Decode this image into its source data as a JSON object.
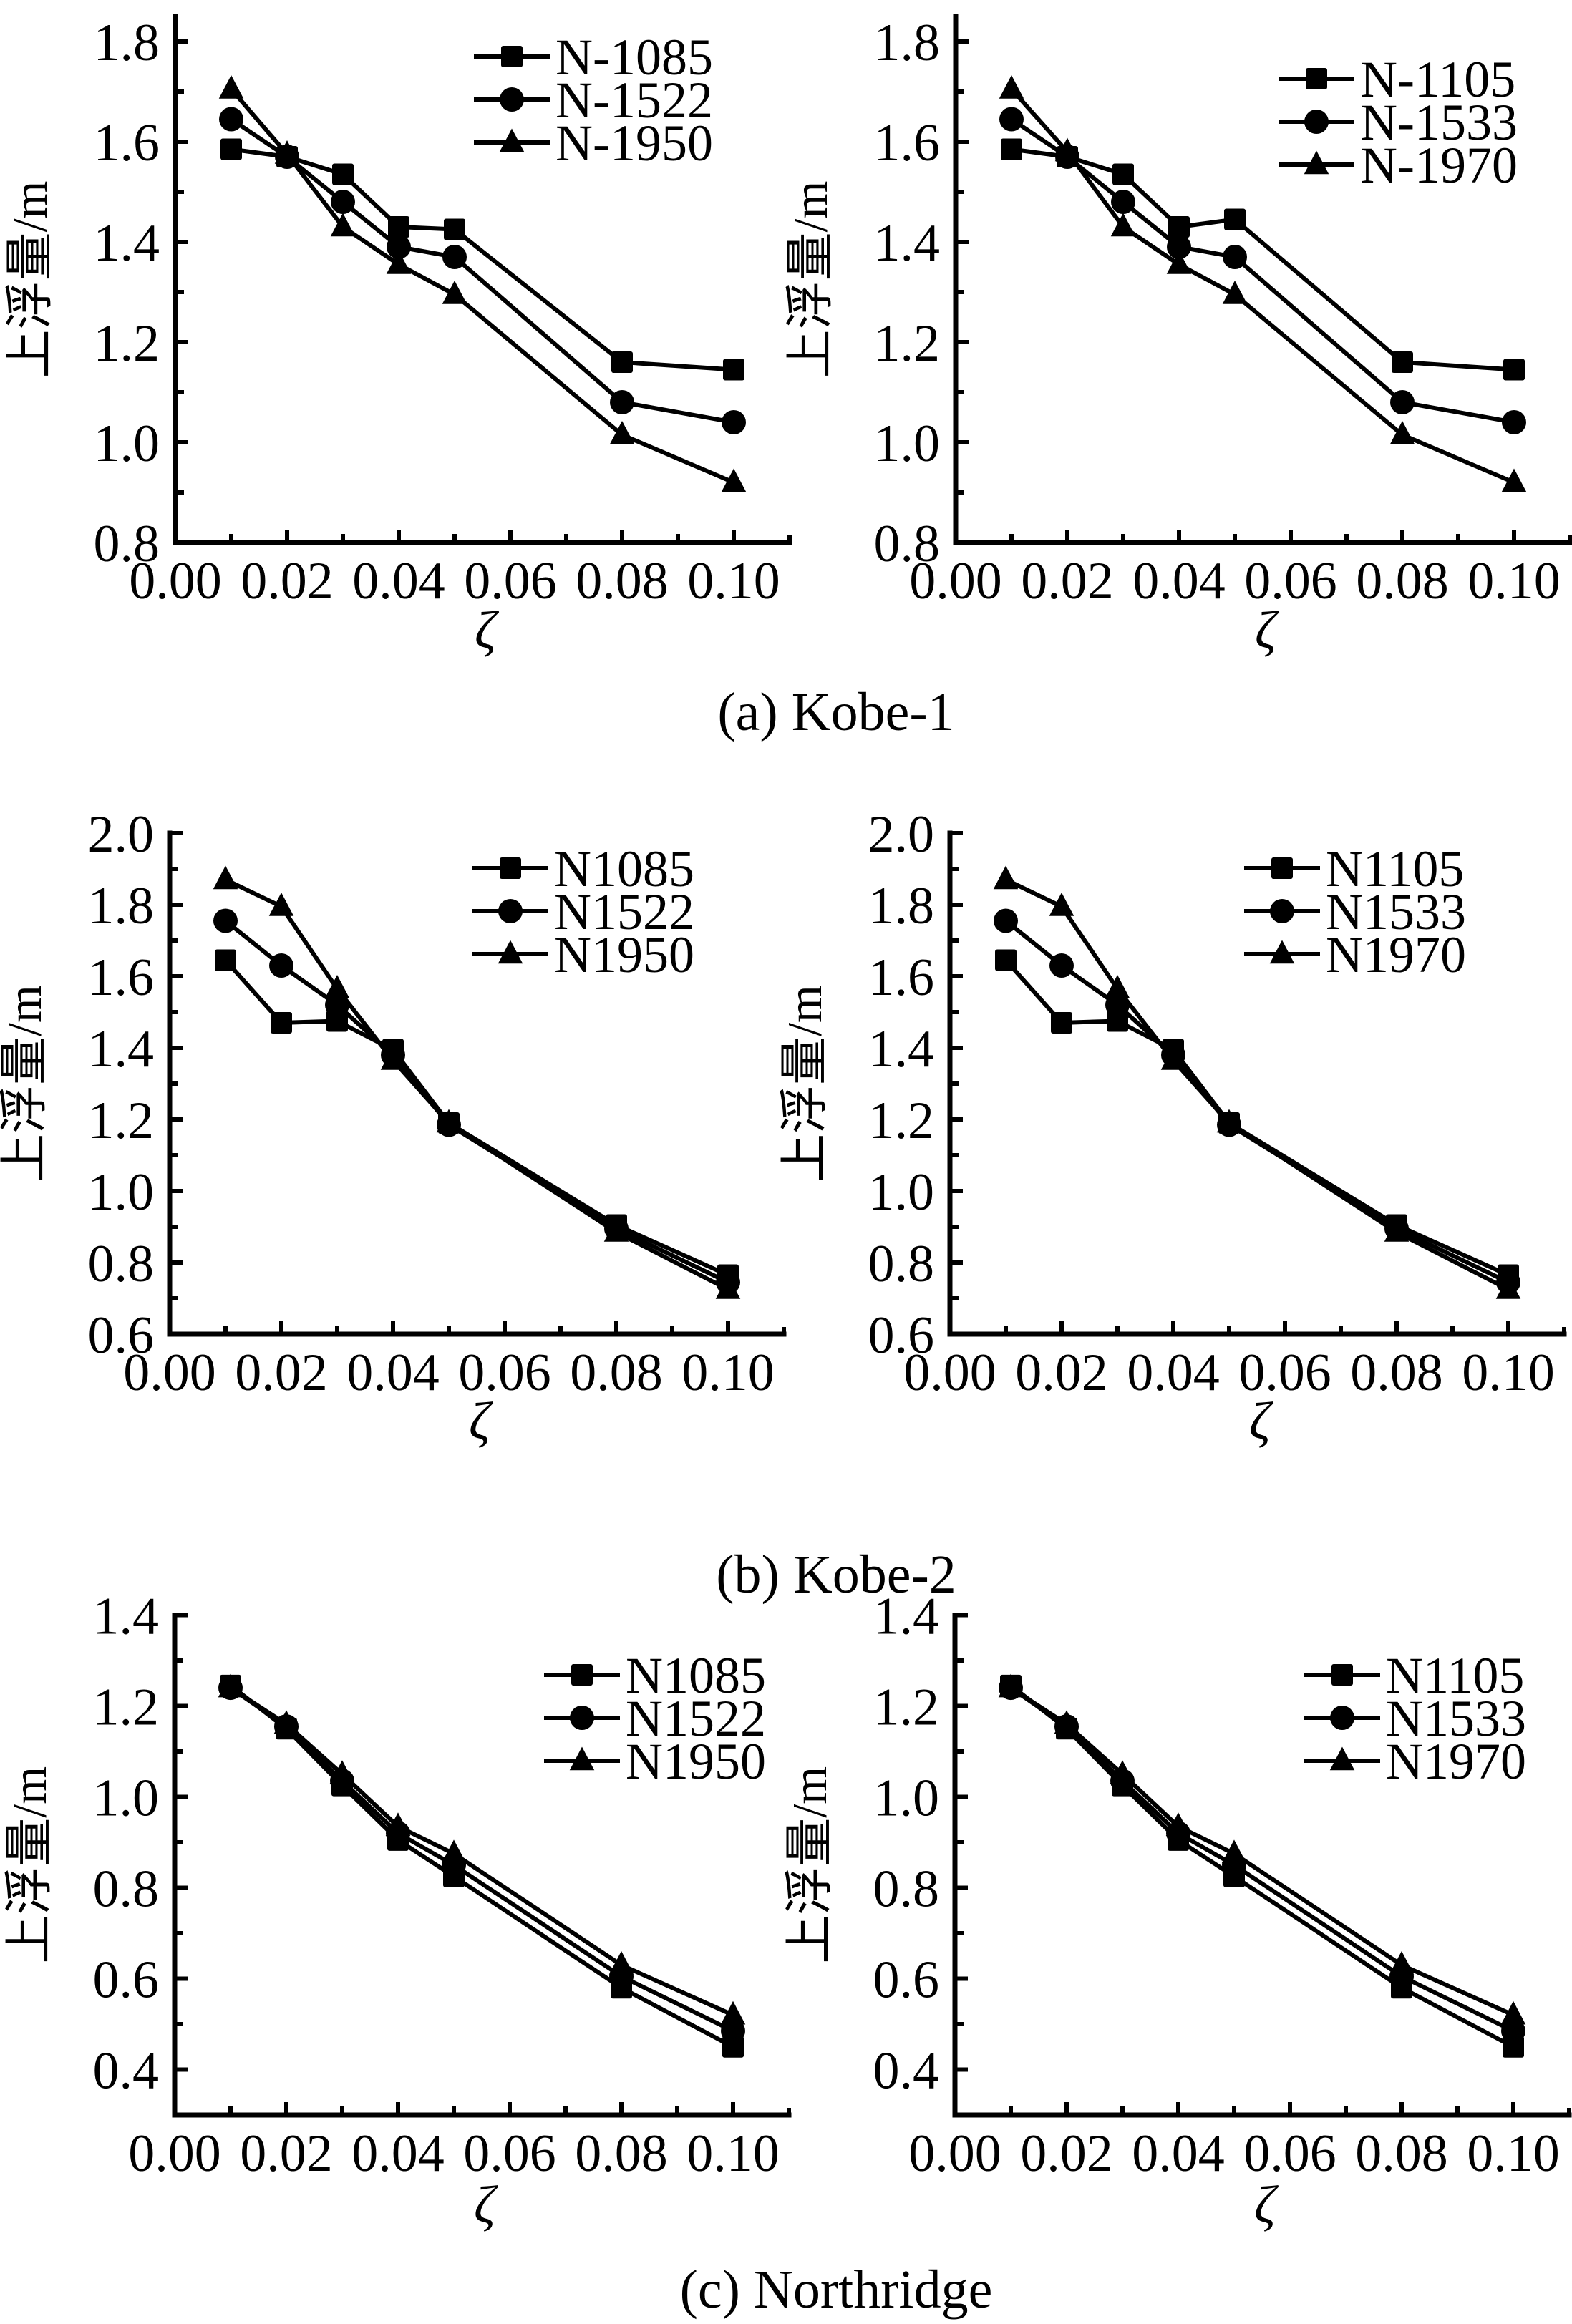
{
  "figure": {
    "captions": [
      "(a) Kobe-1",
      "(b) Kobe-2",
      "(c) Northridge"
    ]
  },
  "chart_data": [
    {
      "type": "line",
      "panel": "Kobe-1 left",
      "group_caption": "(a) Kobe-1",
      "xlabel": "ζ",
      "ylabel": "上浮量/m",
      "xlim": [
        0,
        0.11
      ],
      "ylim": [
        0.8,
        1.85
      ],
      "xticks": [
        0.0,
        0.02,
        0.04,
        0.06,
        0.08,
        0.1
      ],
      "xtick_labels": [
        "0.00",
        "0.02",
        "0.04",
        "0.06",
        "0.08",
        "0.10"
      ],
      "yticks": [
        0.8,
        1.0,
        1.2,
        1.4,
        1.6,
        1.8
      ],
      "ytick_labels": [
        "0.8",
        "1.0",
        "1.2",
        "1.4",
        "1.6",
        "1.8"
      ],
      "grid": false,
      "legend_position": "top-right",
      "x": [
        0.01,
        0.02,
        0.03,
        0.04,
        0.05,
        0.08,
        0.1
      ],
      "series": [
        {
          "name": "N-1085",
          "marker": "square",
          "values": [
            1.585,
            1.57,
            1.535,
            1.43,
            1.425,
            1.16,
            1.145
          ]
        },
        {
          "name": "N-1522",
          "marker": "circle",
          "values": [
            1.645,
            1.57,
            1.48,
            1.39,
            1.37,
            1.08,
            1.04
          ]
        },
        {
          "name": "N-1950",
          "marker": "triangle",
          "values": [
            1.705,
            1.575,
            1.43,
            1.355,
            1.295,
            1.015,
            0.92
          ]
        }
      ]
    },
    {
      "type": "line",
      "panel": "Kobe-1 right",
      "group_caption": "(a) Kobe-1",
      "xlabel": "ζ",
      "ylabel": "上浮量/m",
      "xlim": [
        0,
        0.11
      ],
      "ylim": [
        0.8,
        1.85
      ],
      "xticks": [
        0.0,
        0.02,
        0.04,
        0.06,
        0.08,
        0.1
      ],
      "xtick_labels": [
        "0.00",
        "0.02",
        "0.04",
        "0.06",
        "0.08",
        "0.10"
      ],
      "yticks": [
        0.8,
        1.0,
        1.2,
        1.4,
        1.6,
        1.8
      ],
      "ytick_labels": [
        "0.8",
        "1.0",
        "1.2",
        "1.4",
        "1.6",
        "1.8"
      ],
      "grid": false,
      "legend_position": "top-right",
      "x": [
        0.01,
        0.02,
        0.03,
        0.04,
        0.05,
        0.08,
        0.1
      ],
      "series": [
        {
          "name": "N-1105",
          "marker": "square",
          "values": [
            1.585,
            1.57,
            1.535,
            1.43,
            1.445,
            1.16,
            1.145
          ]
        },
        {
          "name": "N-1533",
          "marker": "circle",
          "values": [
            1.645,
            1.57,
            1.48,
            1.39,
            1.37,
            1.08,
            1.04
          ]
        },
        {
          "name": "N-1970",
          "marker": "triangle",
          "values": [
            1.705,
            1.58,
            1.43,
            1.355,
            1.295,
            1.015,
            0.92
          ]
        }
      ]
    },
    {
      "type": "line",
      "panel": "Kobe-2 left",
      "group_caption": "(b) Kobe-2",
      "xlabel": "ζ",
      "ylabel": "上浮量/m",
      "xlim": [
        0,
        0.11
      ],
      "ylim": [
        0.6,
        2.0
      ],
      "xticks": [
        0.0,
        0.02,
        0.04,
        0.06,
        0.08,
        0.1
      ],
      "xtick_labels": [
        "0.00",
        "0.02",
        "0.04",
        "0.06",
        "0.08",
        "0.10"
      ],
      "yticks": [
        0.6,
        0.8,
        1.0,
        1.2,
        1.4,
        1.6,
        1.8,
        2.0
      ],
      "ytick_labels": [
        "0.6",
        "0.8",
        "1.0",
        "1.2",
        "1.4",
        "1.6",
        "1.8",
        "2.0"
      ],
      "grid": false,
      "legend_position": "top-right",
      "x": [
        0.01,
        0.02,
        0.03,
        0.04,
        0.05,
        0.08,
        0.1
      ],
      "series": [
        {
          "name": "N1085",
          "marker": "square",
          "values": [
            1.645,
            1.47,
            1.475,
            1.395,
            1.19,
            0.905,
            0.765
          ]
        },
        {
          "name": "N1522",
          "marker": "circle",
          "values": [
            1.755,
            1.63,
            1.52,
            1.38,
            1.185,
            0.895,
            0.745
          ]
        },
        {
          "name": "N1950",
          "marker": "triangle",
          "values": [
            1.87,
            1.795,
            1.565,
            1.365,
            1.19,
            0.885,
            0.725
          ]
        }
      ]
    },
    {
      "type": "line",
      "panel": "Kobe-2 right",
      "group_caption": "(b) Kobe-2",
      "xlabel": "ζ",
      "ylabel": "上浮量/m",
      "xlim": [
        0,
        0.11
      ],
      "ylim": [
        0.6,
        2.0
      ],
      "xticks": [
        0.0,
        0.02,
        0.04,
        0.06,
        0.08,
        0.1
      ],
      "xtick_labels": [
        "0.00",
        "0.02",
        "0.04",
        "0.06",
        "0.08",
        "0.10"
      ],
      "yticks": [
        0.6,
        0.8,
        1.0,
        1.2,
        1.4,
        1.6,
        1.8,
        2.0
      ],
      "ytick_labels": [
        "0.6",
        "0.8",
        "1.0",
        "1.2",
        "1.4",
        "1.6",
        "1.8",
        "2.0"
      ],
      "grid": false,
      "legend_position": "top-right",
      "x": [
        0.01,
        0.02,
        0.03,
        0.04,
        0.05,
        0.08,
        0.1
      ],
      "series": [
        {
          "name": "N1105",
          "marker": "square",
          "values": [
            1.645,
            1.47,
            1.475,
            1.395,
            1.19,
            0.905,
            0.765
          ]
        },
        {
          "name": "N1533",
          "marker": "circle",
          "values": [
            1.755,
            1.63,
            1.52,
            1.38,
            1.185,
            0.895,
            0.745
          ]
        },
        {
          "name": "N1970",
          "marker": "triangle",
          "values": [
            1.87,
            1.795,
            1.565,
            1.365,
            1.19,
            0.885,
            0.725
          ]
        }
      ]
    },
    {
      "type": "line",
      "panel": "Northridge left",
      "group_caption": "(c) Northridge",
      "xlabel": "ζ",
      "ylabel": "上浮量/m",
      "xlim": [
        0,
        0.11
      ],
      "ylim": [
        0.3,
        1.4
      ],
      "xticks": [
        0.0,
        0.02,
        0.04,
        0.06,
        0.08,
        0.1
      ],
      "xtick_labels": [
        "0.00",
        "0.02",
        "0.04",
        "0.06",
        "0.08",
        "0.10"
      ],
      "yticks": [
        0.4,
        0.6,
        0.8,
        1.0,
        1.2,
        1.4
      ],
      "ytick_labels": [
        "0.4",
        "0.6",
        "0.8",
        "1.0",
        "1.2",
        "1.4"
      ],
      "grid": false,
      "legend_position": "top-right",
      "x": [
        0.01,
        0.02,
        0.03,
        0.04,
        0.05,
        0.08,
        0.1
      ],
      "series": [
        {
          "name": "N1085",
          "marker": "square",
          "values": [
            1.245,
            1.15,
            1.025,
            0.905,
            0.825,
            0.58,
            0.45
          ]
        },
        {
          "name": "N1522",
          "marker": "circle",
          "values": [
            1.24,
            1.155,
            1.035,
            0.92,
            0.85,
            0.605,
            0.485
          ]
        },
        {
          "name": "N1950",
          "marker": "triangle",
          "values": [
            1.24,
            1.16,
            1.05,
            0.935,
            0.875,
            0.63,
            0.52
          ]
        }
      ]
    },
    {
      "type": "line",
      "panel": "Northridge right",
      "group_caption": "(c) Northridge",
      "xlabel": "ζ",
      "ylabel": "上浮量/m",
      "xlim": [
        0,
        0.11
      ],
      "ylim": [
        0.3,
        1.4
      ],
      "xticks": [
        0.0,
        0.02,
        0.04,
        0.06,
        0.08,
        0.1
      ],
      "xtick_labels": [
        "0.00",
        "0.02",
        "0.04",
        "0.06",
        "0.08",
        "0.10"
      ],
      "yticks": [
        0.4,
        0.6,
        0.8,
        1.0,
        1.2,
        1.4
      ],
      "ytick_labels": [
        "0.4",
        "0.6",
        "0.8",
        "1.0",
        "1.2",
        "1.4"
      ],
      "grid": false,
      "legend_position": "top-right",
      "x": [
        0.01,
        0.02,
        0.03,
        0.04,
        0.05,
        0.08,
        0.1
      ],
      "series": [
        {
          "name": "N1105",
          "marker": "square",
          "values": [
            1.245,
            1.15,
            1.025,
            0.905,
            0.825,
            0.58,
            0.45
          ]
        },
        {
          "name": "N1533",
          "marker": "circle",
          "values": [
            1.24,
            1.155,
            1.035,
            0.92,
            0.85,
            0.605,
            0.485
          ]
        },
        {
          "name": "N1970",
          "marker": "triangle",
          "values": [
            1.24,
            1.16,
            1.05,
            0.935,
            0.875,
            0.63,
            0.52
          ]
        }
      ]
    }
  ]
}
